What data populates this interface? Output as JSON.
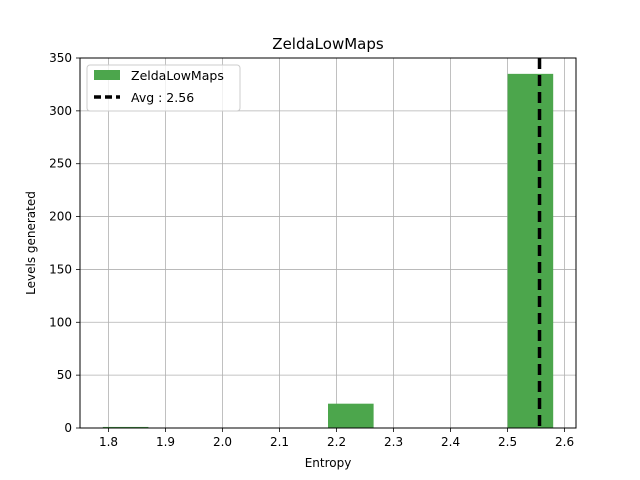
{
  "chart_data": {
    "type": "bar",
    "title": "ZeldaLowMaps",
    "xlabel": "Entropy",
    "ylabel": "Levels generated",
    "xlim": [
      1.75,
      2.62
    ],
    "ylim": [
      0,
      350
    ],
    "xticks": [
      "1.8",
      "1.9",
      "2.0",
      "2.1",
      "2.2",
      "2.3",
      "2.4",
      "2.5",
      "2.6"
    ],
    "yticks": [
      "0",
      "50",
      "100",
      "150",
      "200",
      "250",
      "300",
      "350"
    ],
    "grid": true,
    "legend_position": "top-left",
    "bar_color": "#4ca64c",
    "bins": [
      {
        "x0": 1.79,
        "x1": 1.87,
        "value": 1
      },
      {
        "x0": 2.185,
        "x1": 2.265,
        "value": 23
      },
      {
        "x0": 2.5,
        "x1": 2.58,
        "value": 335
      }
    ],
    "series": [
      {
        "name": "ZeldaLowMaps",
        "kind": "histogram",
        "color": "#4ca64c"
      },
      {
        "name": "Avg : 2.56",
        "kind": "vline",
        "value": 2.556,
        "color": "#000000",
        "style": "dashed"
      }
    ]
  }
}
